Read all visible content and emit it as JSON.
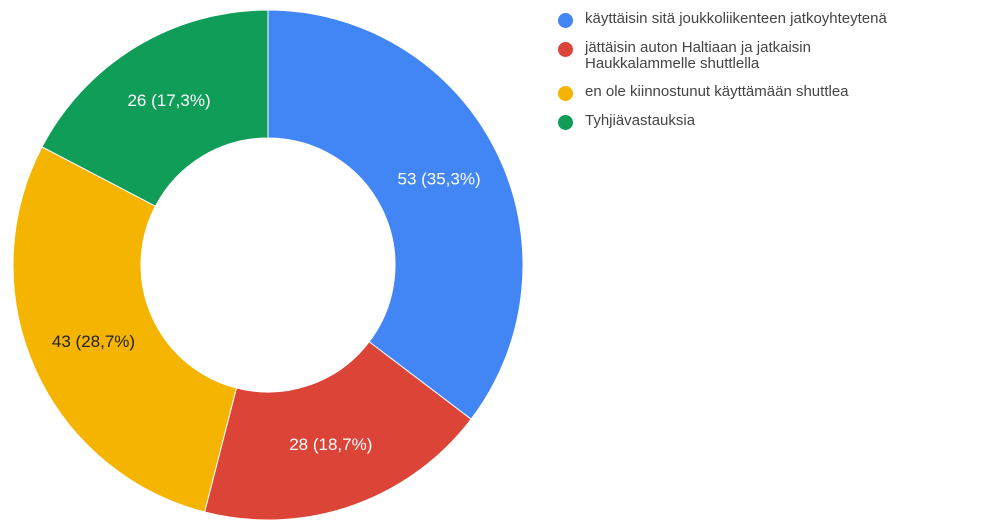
{
  "chart_data": {
    "type": "donut",
    "categories": [
      "käyttäisin sitä joukkoliikenteen jatkoyhteytenä",
      "jättäisin auton Haltiaan ja jatkaisin Haukkalammelle shuttlella",
      "en ole kiinnostunut käyttämään shuttlea",
      "Tyhjiävastauksia"
    ],
    "values": [
      53,
      28,
      43,
      26
    ],
    "value_labels": [
      "53 (35,3%)",
      "28 (18,7%)",
      "43 (28,7%)",
      "26 (17,3%)"
    ],
    "colors": [
      "#4285f4",
      "#db4437",
      "#f4b400",
      "#0f9d58"
    ],
    "legend": "right"
  }
}
